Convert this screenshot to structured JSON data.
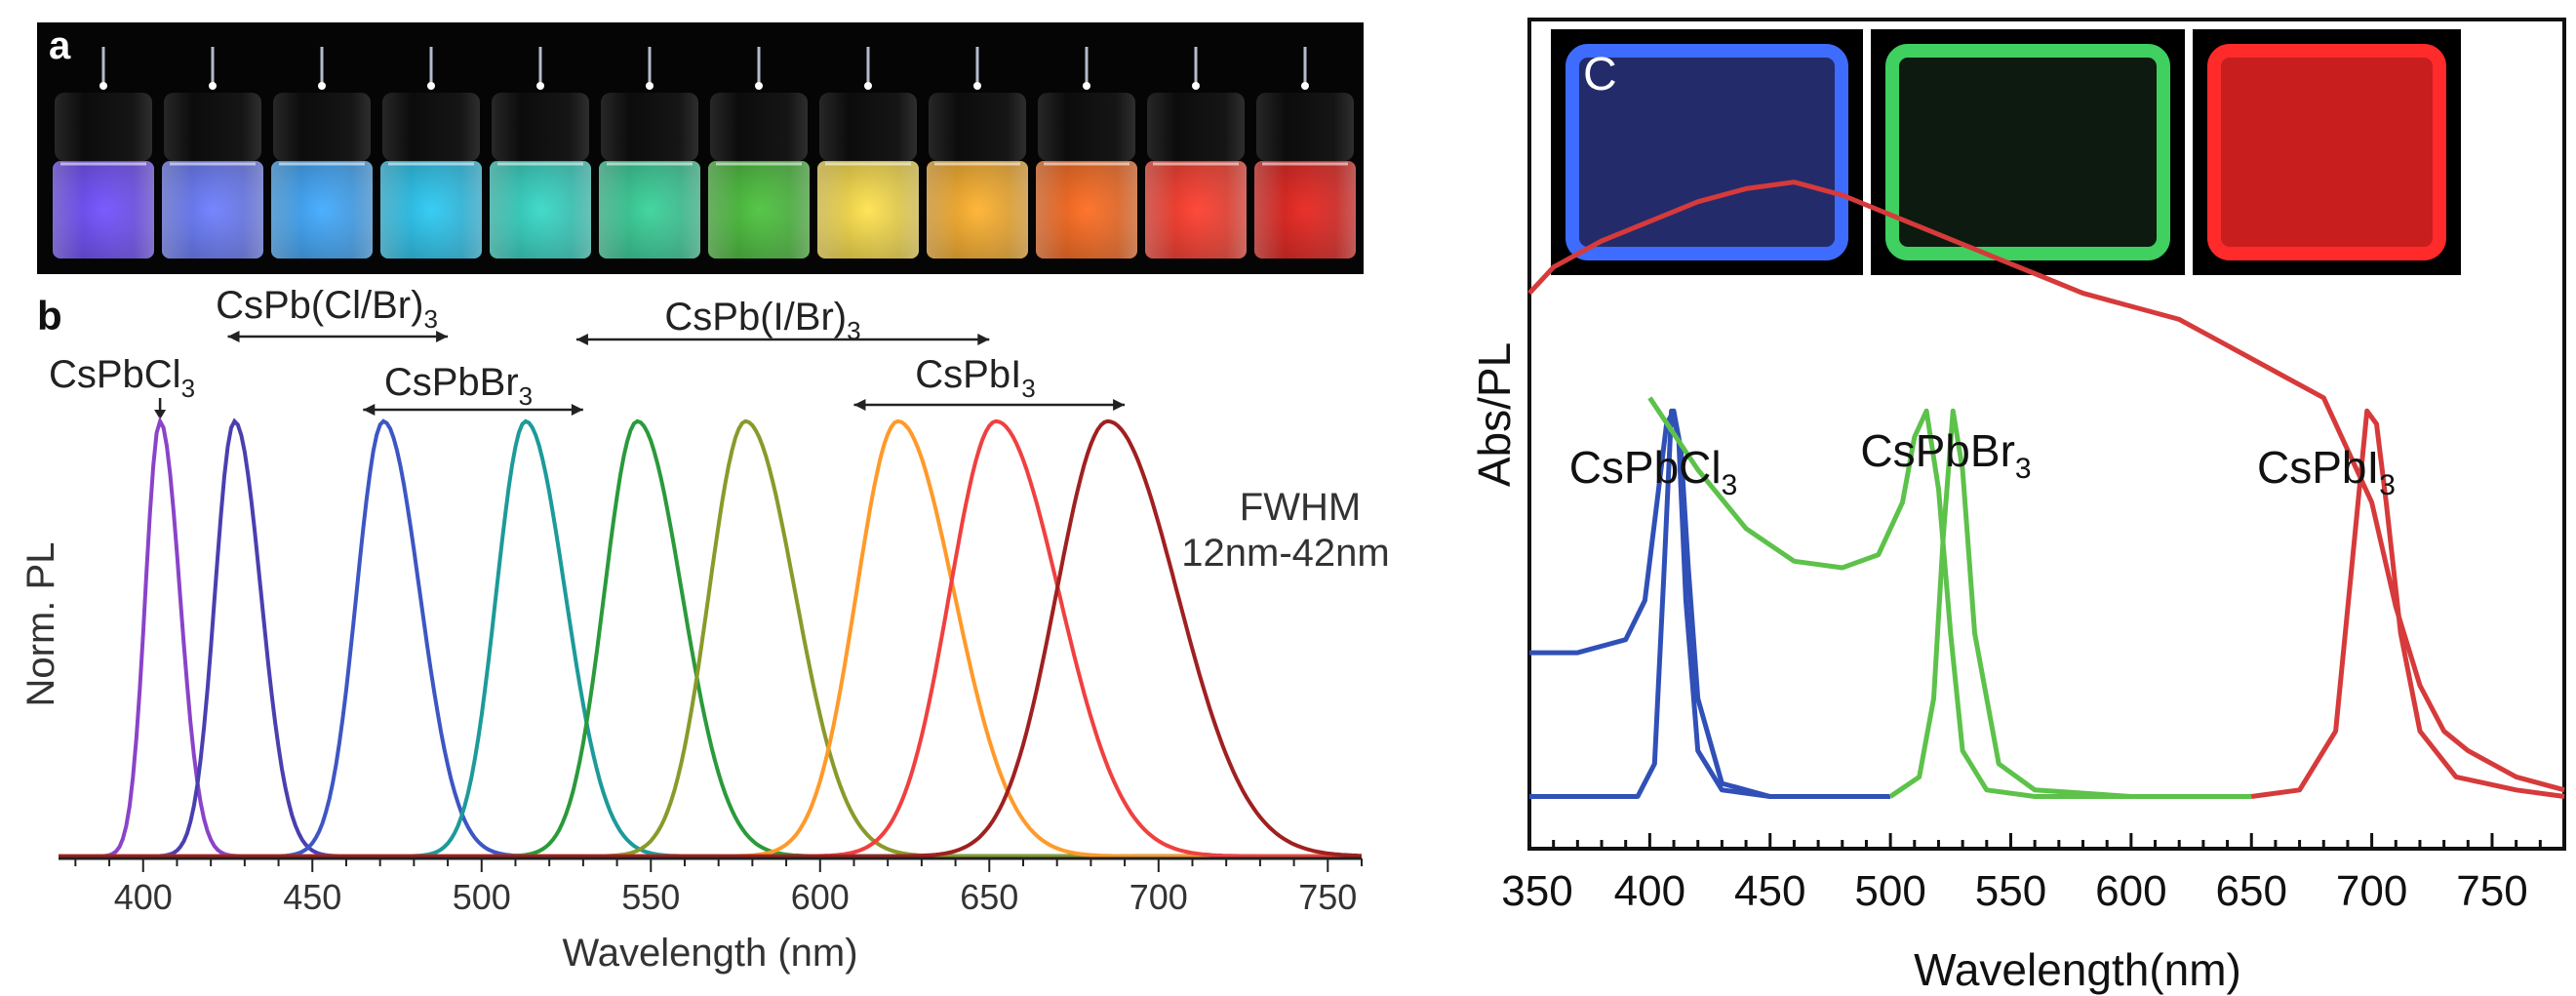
{
  "panel_a": {
    "label": "a",
    "vial_colors": [
      "#6f4dff",
      "#6a7cff",
      "#3ea9ff",
      "#28c9f4",
      "#33d8c6",
      "#36d29a",
      "#49c23a",
      "#ffe24a",
      "#ffb12a",
      "#ff6a1c",
      "#ff3a2a",
      "#e8201a"
    ]
  },
  "panel_b": {
    "label": "b",
    "fwhm_line1": "FWHM",
    "fwhm_line2": "12nm-42nm",
    "groups": [
      {
        "base": "CsPb(Cl/Br)",
        "sub": "3",
        "range_nm": [
          425,
          490
        ]
      },
      {
        "base": "CsPb(I/Br)",
        "sub": "3",
        "range_nm": [
          528,
          650
        ]
      },
      {
        "base": "CsPbCl",
        "sub": "3",
        "range_nm": [
          405,
          405
        ]
      },
      {
        "base": "CsPbBr",
        "sub": "3",
        "range_nm": [
          465,
          530
        ]
      },
      {
        "base": "CsPbI",
        "sub": "3",
        "range_nm": [
          610,
          690
        ]
      }
    ]
  },
  "panel_c": {
    "label": "c",
    "inset_colors": [
      "#3d6cff",
      "#3fd060",
      "#ff2a2a"
    ],
    "labels": [
      {
        "base": "CsPbCl",
        "sub": "3"
      },
      {
        "base": "CsPbBr",
        "sub": "3"
      },
      {
        "base": "CsPbI",
        "sub": "3"
      }
    ]
  },
  "chart_data": [
    {
      "type": "line",
      "title": "",
      "xlabel": "Wavelength (nm)",
      "ylabel": "Norm. PL",
      "xlim": [
        375,
        760
      ],
      "ylim": [
        0,
        1.0
      ],
      "x_ticks": [
        400,
        450,
        500,
        550,
        600,
        650,
        700,
        750
      ],
      "series": [
        {
          "name": "PL 405",
          "center": 405,
          "fwhm": 12,
          "color": "#8a43c9"
        },
        {
          "name": "PL 427",
          "center": 427,
          "fwhm": 16,
          "color": "#4a3fb0"
        },
        {
          "name": "PL 471",
          "center": 471,
          "fwhm": 22,
          "color": "#3d56c4"
        },
        {
          "name": "PL 513",
          "center": 513,
          "fwhm": 24,
          "color": "#1d9a9a"
        },
        {
          "name": "PL 546",
          "center": 546,
          "fwhm": 27,
          "color": "#2a9a3a"
        },
        {
          "name": "PL 578",
          "center": 578,
          "fwhm": 30,
          "color": "#8a9a2a"
        },
        {
          "name": "PL 623",
          "center": 623,
          "fwhm": 34,
          "color": "#ff9a2a"
        },
        {
          "name": "PL 652",
          "center": 652,
          "fwhm": 38,
          "color": "#f04040"
        },
        {
          "name": "PL 685",
          "center": 685,
          "fwhm": 42,
          "color": "#a02020"
        }
      ]
    },
    {
      "type": "line",
      "title": "",
      "xlabel": "Wavelength(nm)",
      "ylabel": "Abs/PL",
      "xlim": [
        350,
        780
      ],
      "ylim": [
        0,
        1.0
      ],
      "x_ticks": [
        350,
        400,
        450,
        500,
        550,
        600,
        650,
        700,
        750
      ],
      "series": [
        {
          "name": "CsPbCl3 Abs",
          "color": "#3050b8",
          "x": [
            350,
            370,
            390,
            398,
            403,
            407,
            410,
            413,
            416,
            420,
            430,
            450,
            480,
            500
          ],
          "y": [
            0.27,
            0.27,
            0.29,
            0.35,
            0.5,
            0.62,
            0.64,
            0.58,
            0.4,
            0.2,
            0.07,
            0.05,
            0.05,
            0.05
          ]
        },
        {
          "name": "CsPbCl3 PL",
          "color": "#3050b8",
          "x": [
            350,
            395,
            402,
            406,
            409,
            412,
            415,
            420,
            430,
            450,
            480,
            500
          ],
          "y": [
            0.05,
            0.05,
            0.1,
            0.4,
            0.64,
            0.6,
            0.35,
            0.12,
            0.06,
            0.05,
            0.05,
            0.05
          ]
        },
        {
          "name": "CsPbBr3 Abs",
          "color": "#5cc24a",
          "x": [
            400,
            420,
            440,
            460,
            480,
            495,
            505,
            510,
            515,
            520,
            525,
            530,
            540,
            560,
            600,
            650
          ],
          "y": [
            0.66,
            0.55,
            0.46,
            0.41,
            0.4,
            0.42,
            0.5,
            0.6,
            0.64,
            0.52,
            0.3,
            0.12,
            0.06,
            0.05,
            0.05,
            0.05
          ]
        },
        {
          "name": "CsPbBr3 PL",
          "color": "#5cc24a",
          "x": [
            500,
            512,
            518,
            522,
            526,
            530,
            535,
            545,
            560,
            600,
            650
          ],
          "y": [
            0.05,
            0.08,
            0.2,
            0.45,
            0.64,
            0.55,
            0.3,
            0.1,
            0.06,
            0.05,
            0.05
          ]
        },
        {
          "name": "CsPbI3 Abs",
          "color": "#d63a3a",
          "x": [
            350,
            360,
            380,
            400,
            420,
            440,
            460,
            480,
            500,
            520,
            540,
            560,
            580,
            600,
            620,
            640,
            660,
            680,
            700,
            710,
            720,
            730,
            740,
            760,
            780
          ],
          "y": [
            0.82,
            0.86,
            0.9,
            0.93,
            0.96,
            0.98,
            0.99,
            0.97,
            0.94,
            0.91,
            0.88,
            0.85,
            0.82,
            0.8,
            0.78,
            0.74,
            0.7,
            0.66,
            0.5,
            0.34,
            0.22,
            0.15,
            0.12,
            0.08,
            0.06
          ]
        },
        {
          "name": "CsPbI3 PL",
          "color": "#d63a3a",
          "x": [
            650,
            670,
            685,
            693,
            698,
            702,
            706,
            712,
            720,
            735,
            760,
            780
          ],
          "y": [
            0.05,
            0.06,
            0.15,
            0.45,
            0.64,
            0.62,
            0.5,
            0.3,
            0.15,
            0.08,
            0.06,
            0.05
          ]
        }
      ]
    }
  ]
}
